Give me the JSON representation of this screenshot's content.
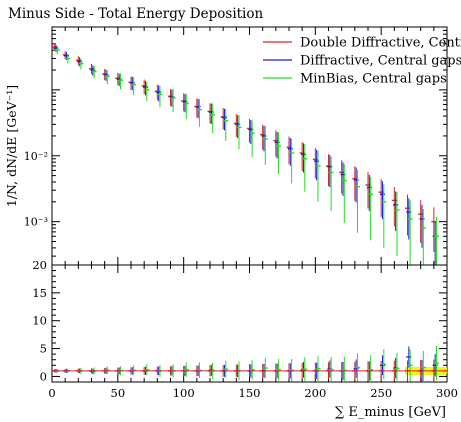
{
  "chart_data": {
    "type": "scatter",
    "title": "Minus Side - Total Energy Deposition",
    "xlabel": "∑ E_minus [GeV]",
    "ylabel": "1/N, dN/dE [GeV⁻¹]",
    "xlim": [
      0,
      300
    ],
    "main_panel": {
      "yscale": "log",
      "ylim": [
        0.00022,
        0.9
      ],
      "yticks": [
        {
          "value": 0.01,
          "label": "10⁻²"
        },
        {
          "value": 0.001,
          "label": "10⁻³"
        }
      ]
    },
    "ratio_panel": {
      "ylim": [
        -1,
        20
      ],
      "yticks": [
        0,
        5,
        10,
        15,
        20
      ]
    },
    "xticks": [
      0,
      50,
      100,
      150,
      200,
      250,
      300
    ],
    "legend": {
      "position": "top-right",
      "entries": [
        "Double Diffractive, Central gaps",
        "Diffractive, Central gaps",
        "MinBias, Central gaps"
      ]
    },
    "series": [
      {
        "name": "Double Diffractive, Central gaps",
        "color": "#d62728",
        "x": [
          2,
          10,
          20,
          30,
          40,
          50,
          60,
          70,
          80,
          90,
          100,
          110,
          120,
          130,
          140,
          150,
          160,
          170,
          180,
          190,
          200,
          210,
          220,
          230,
          240,
          250,
          260,
          270,
          280,
          290
        ],
        "y": [
          0.45,
          0.34,
          0.28,
          0.21,
          0.175,
          0.15,
          0.13,
          0.115,
          0.095,
          0.08,
          0.068,
          0.056,
          0.047,
          0.039,
          0.031,
          0.026,
          0.021,
          0.017,
          0.0135,
          0.011,
          0.0088,
          0.007,
          0.0056,
          0.0045,
          0.0036,
          0.0028,
          0.0021,
          0.0016,
          0.0013,
          0.001
        ],
        "ratio": [
          1,
          1,
          1,
          1,
          1,
          1,
          1,
          1,
          1,
          1,
          1,
          1,
          1,
          1,
          1,
          1,
          1,
          1,
          1,
          1,
          1,
          1,
          1,
          1,
          1,
          1,
          1,
          1,
          1,
          1
        ]
      },
      {
        "name": "Diffractive, Central gaps",
        "color": "#1f1fd6",
        "x": [
          3,
          11,
          21,
          31,
          41,
          51,
          61,
          71,
          81,
          91,
          101,
          111,
          121,
          131,
          141,
          151,
          161,
          171,
          181,
          191,
          201,
          211,
          221,
          231,
          241,
          251,
          261,
          271,
          281,
          291
        ],
        "y": [
          0.43,
          0.33,
          0.27,
          0.2,
          0.17,
          0.145,
          0.128,
          0.11,
          0.092,
          0.078,
          0.066,
          0.055,
          0.046,
          0.038,
          0.03,
          0.025,
          0.02,
          0.016,
          0.0128,
          0.0105,
          0.0083,
          0.0068,
          0.0052,
          0.0043,
          0.0033,
          0.0026,
          0.0018,
          0.0014,
          0.0011,
          0.0006
        ],
        "ratio": [
          1,
          1,
          1,
          0.9,
          1,
          1,
          1,
          1,
          1,
          1,
          1,
          1,
          1.1,
          1,
          1,
          1,
          1,
          1,
          1,
          1.2,
          1,
          1.3,
          1,
          1.4,
          1,
          2,
          1.5,
          3.5,
          1,
          2
        ]
      },
      {
        "name": "MinBias, Central gaps",
        "color": "#22dd22",
        "x": [
          4,
          12,
          22,
          32,
          42,
          52,
          62,
          72,
          82,
          92,
          102,
          112,
          122,
          132,
          142,
          152,
          162,
          172,
          182,
          192,
          202,
          212,
          222,
          232,
          242,
          252,
          262,
          272,
          282,
          292
        ],
        "y": [
          0.4,
          0.3,
          0.25,
          0.19,
          0.16,
          0.14,
          0.12,
          0.1,
          0.085,
          0.075,
          0.062,
          0.05,
          0.042,
          0.034,
          0.027,
          0.022,
          0.018,
          0.014,
          0.011,
          0.009,
          0.007,
          0.0056,
          0.0042,
          0.0034,
          0.0026,
          0.002,
          0.0015,
          0.0011,
          0.0008,
          0.0006
        ],
        "ratio": [
          1,
          1,
          1,
          1,
          1.1,
          1,
          1.1,
          1.2,
          1,
          1,
          1.2,
          1.1,
          1,
          1.3,
          1,
          1.2,
          1.5,
          1.2,
          1.1,
          1.3,
          1.4,
          1.2,
          1.1,
          1.6,
          1.2,
          2.2,
          1.4,
          2,
          1.6,
          2.4
        ]
      }
    ]
  }
}
